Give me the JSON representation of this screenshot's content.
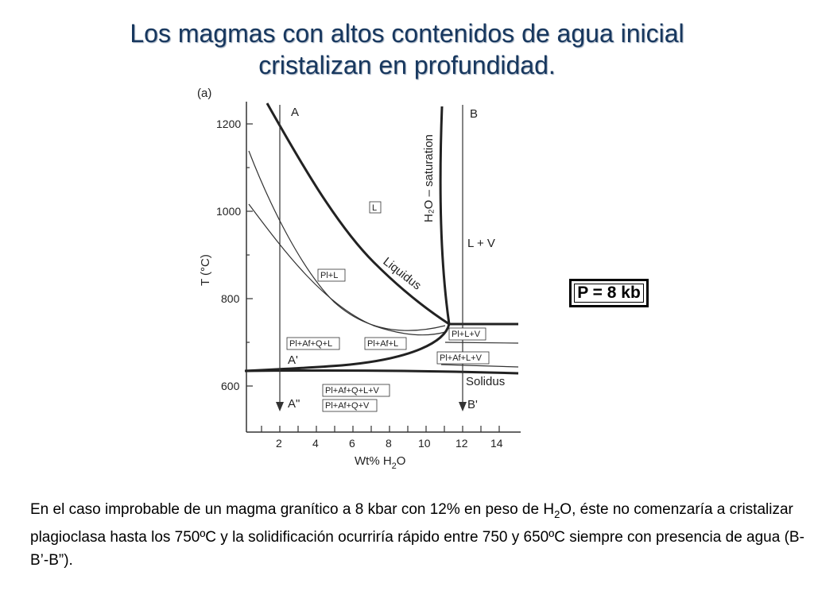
{
  "slide": {
    "title_line1": "Los magmas con altos contenidos de agua inicial",
    "title_line2": "cristalizan en profundidad.",
    "pressure_label": "P = 8 kb",
    "caption_part1": "En el caso improbable de un magma granítico a 8 kbar con 12% en peso de H",
    "caption_sub": "2",
    "caption_part2": "O, éste  no comenzaría a cristalizar plagioclasa hasta los 750ºC y la solidificación ocurriría rápido entre 750 y 650ºC siempre con presencia de agua (B-B’-B”)."
  },
  "diagram": {
    "panel_label": "(a)",
    "y_axis_label": "T (°C)",
    "x_axis_label_main": "Wt% H",
    "x_axis_label_sub": "2",
    "x_axis_label_end": "O",
    "y_ticks": [
      "1200",
      "1000",
      "800",
      "600"
    ],
    "x_ticks": [
      "2",
      "4",
      "6",
      "8",
      "10",
      "12",
      "14"
    ],
    "curve_labels": {
      "liquidus": "Liquidus",
      "saturation": "H₂O – saturation",
      "solidus": "Solidus"
    },
    "path_labels": {
      "a": "A",
      "a_prime": "A'",
      "a_double": "A\"",
      "b": "B",
      "b_prime": "B'"
    },
    "field_labels": {
      "l": "L",
      "l_v": "L + V",
      "pl_l": "Pl+L",
      "pl_af_q_l": "Pl+Af+Q+L",
      "pl_af_l": "Pl+Af+L",
      "pl_l_v": "Pl+L+V",
      "pl_af_l_v": "Pl+Af+L+V",
      "pl_af_q_l_v": "Pl+Af+Q+L+V",
      "pl_af_q_v": "Pl+Af+Q+V"
    }
  }
}
